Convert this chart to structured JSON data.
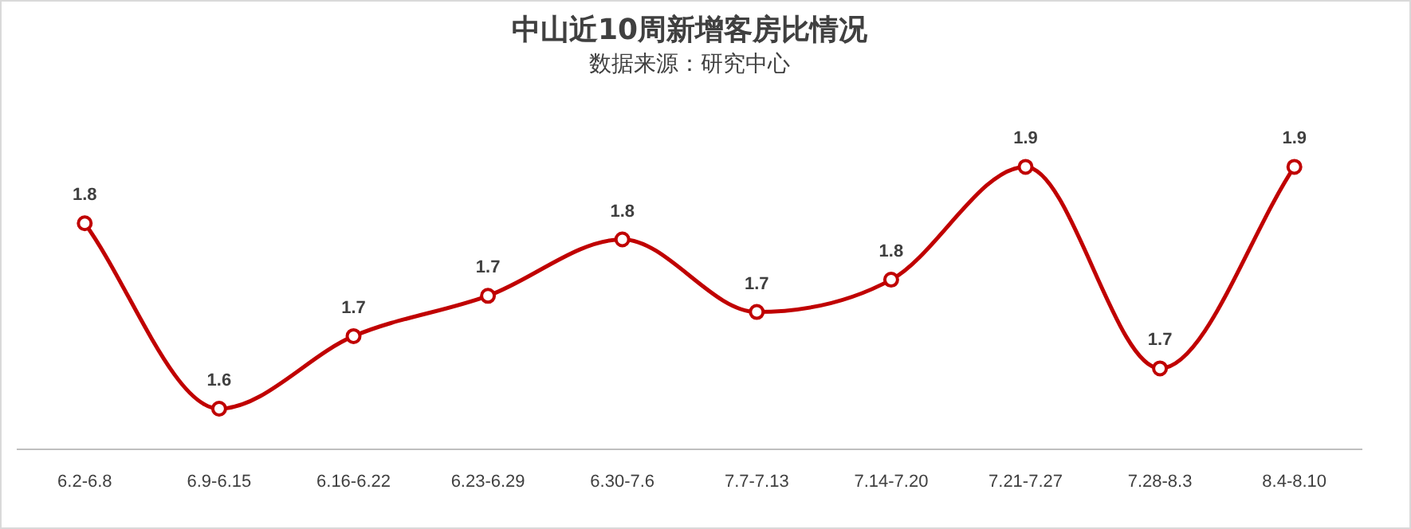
{
  "chart_data": {
    "type": "line",
    "title": "中山近10周新增客房比情况",
    "subtitle": "数据来源：研究中心",
    "categories": [
      "6.2-6.8",
      "6.9-6.15",
      "6.16-6.22",
      "6.23-6.29",
      "6.30-7.6",
      "7.7-7.13",
      "7.14-7.20",
      "7.21-7.27",
      "7.28-8.3",
      "8.4-8.10"
    ],
    "tick_labels": "x",
    "series": [
      {
        "color": "#c00000",
        "values": [
          1.83,
          1.6,
          1.69,
          1.74,
          1.81,
          1.72,
          1.76,
          1.9,
          1.65,
          1.9
        ],
        "value_labels": [
          "1.8",
          "1.6",
          "1.7",
          "1.7",
          "1.8",
          "1.7",
          "1.8",
          "1.9",
          "1.7",
          "1.9"
        ]
      }
    ],
    "marker": "circle",
    "line_style": "solid",
    "grid": false,
    "legend": false
  }
}
